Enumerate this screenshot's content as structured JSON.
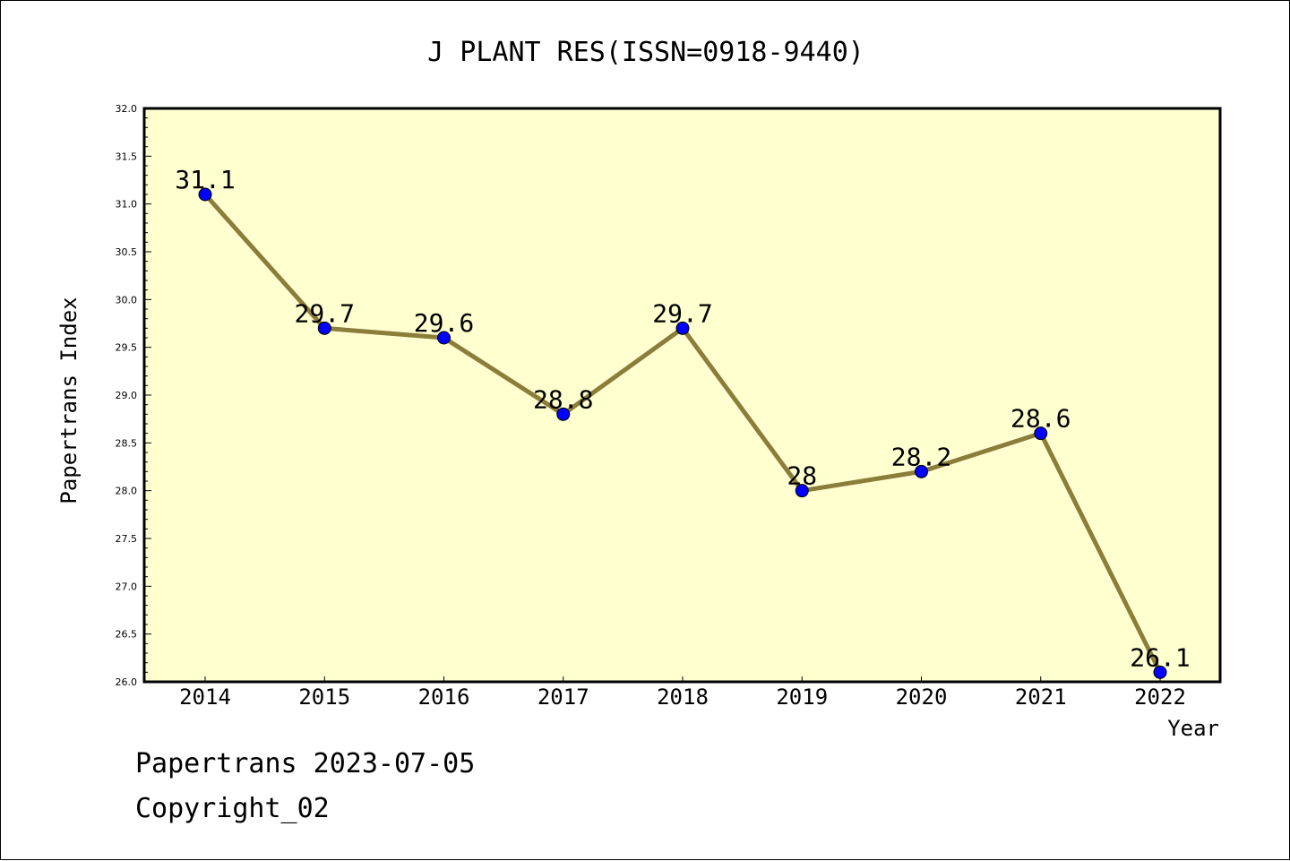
{
  "chart_data": {
    "type": "line",
    "title": "J PLANT RES(ISSN=0918-9440)",
    "xlabel": "Year",
    "ylabel": "Papertrans Index",
    "categories": [
      "2014",
      "2015",
      "2016",
      "2017",
      "2018",
      "2019",
      "2020",
      "2021",
      "2022"
    ],
    "series": [
      {
        "values": [
          31.1,
          29.7,
          29.6,
          28.8,
          29.7,
          28.0,
          28.2,
          28.6,
          26.1
        ],
        "labels": [
          "31.1",
          "29.7",
          "29.6",
          "28.8",
          "29.7",
          "28",
          "28.2",
          "28.6",
          "26.1"
        ]
      }
    ],
    "ylim": [
      26.0,
      32.0
    ],
    "yticks": [
      "26.0",
      "26.5",
      "27.0",
      "27.5",
      "28.0",
      "28.5",
      "29.0",
      "29.5",
      "30.0",
      "30.5",
      "31.0",
      "31.5",
      "32.0"
    ],
    "grid": false,
    "colors": {
      "plot_background": "#ffffd0",
      "line": "#8b7d3a",
      "marker": "#0000ff"
    }
  },
  "footer": {
    "line1": "Papertrans 2023-07-05",
    "line2": "Copyright_02"
  }
}
